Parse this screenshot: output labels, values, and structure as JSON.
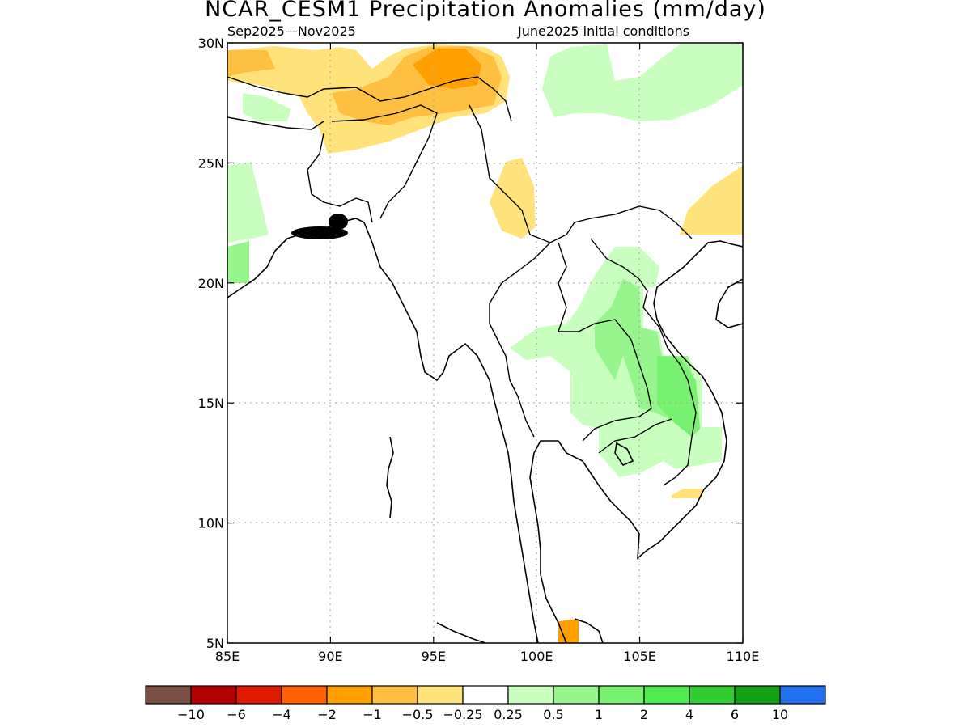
{
  "header": {
    "title": "NCAR_CESM1 Precipitation Anomalies (mm/day)",
    "season": "Sep2025—Nov2025",
    "init": "June2025 initial conditions"
  },
  "map": {
    "lon_range": [
      85,
      110
    ],
    "lat_range": [
      5,
      30
    ],
    "x_ticks": [
      "85E",
      "90E",
      "95E",
      "100E",
      "105E",
      "110E"
    ],
    "y_ticks": [
      "30N",
      "25N",
      "20N",
      "15N",
      "10N",
      "5N"
    ],
    "grid": "dotted"
  },
  "legend": {
    "colors": [
      "#7a5045",
      "#b40000",
      "#e01a00",
      "#ff6000",
      "#ffa000",
      "#ffbf40",
      "#ffe27a",
      "#ffffff",
      "#c8ffbe",
      "#96f58c",
      "#78f070",
      "#50eb50",
      "#32cd32",
      "#14a014",
      "#2070f0"
    ],
    "labels": [
      "−10",
      "−6",
      "−4",
      "−2",
      "−1",
      "−0.5",
      "−0.25",
      "0.25",
      "0.5",
      "1",
      "2",
      "4",
      "6",
      "10"
    ]
  }
}
